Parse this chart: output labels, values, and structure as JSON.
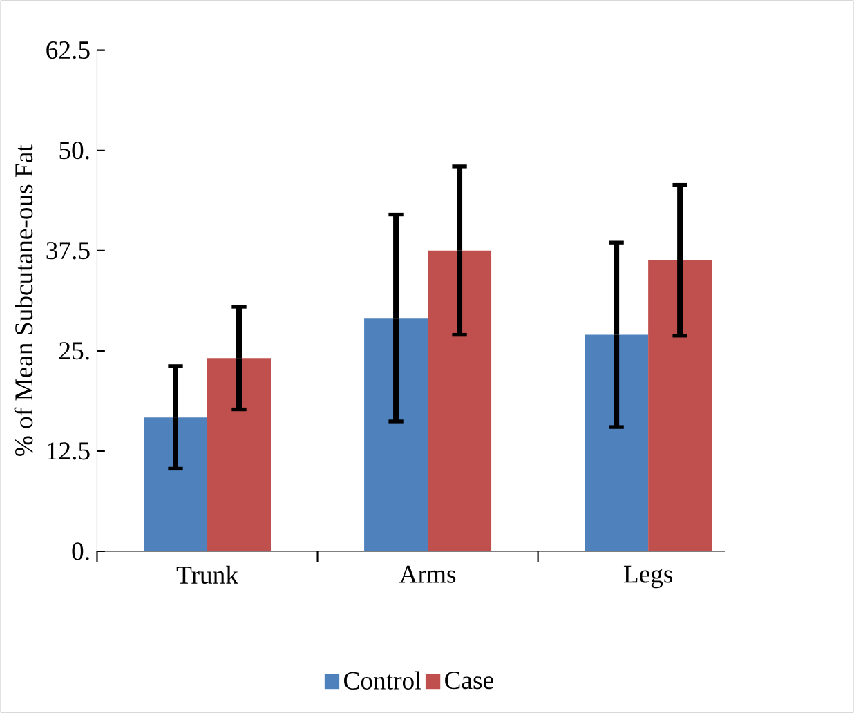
{
  "chart_data": {
    "type": "bar",
    "ylabel": "% of Mean   Subcutane-ous Fat",
    "categories": [
      "Trunk",
      "Arms",
      "Legs"
    ],
    "series": [
      {
        "name": "Control",
        "color": "#4f81bd",
        "values": [
          16.7,
          29.1,
          27.0
        ],
        "errors": [
          6.4,
          12.9,
          11.5
        ]
      },
      {
        "name": "Case",
        "color": "#c0504d",
        "values": [
          24.1,
          37.5,
          36.3
        ],
        "errors": [
          6.4,
          10.5,
          9.4
        ]
      }
    ],
    "ylim": [
      0,
      62.5
    ],
    "yticks": [
      {
        "value": 0,
        "label": "0."
      },
      12.5,
      {
        "value": 25,
        "label": "25."
      },
      37.5,
      {
        "value": 50,
        "label": "50."
      },
      62.5
    ],
    "grid": false,
    "legend": "bottom"
  }
}
